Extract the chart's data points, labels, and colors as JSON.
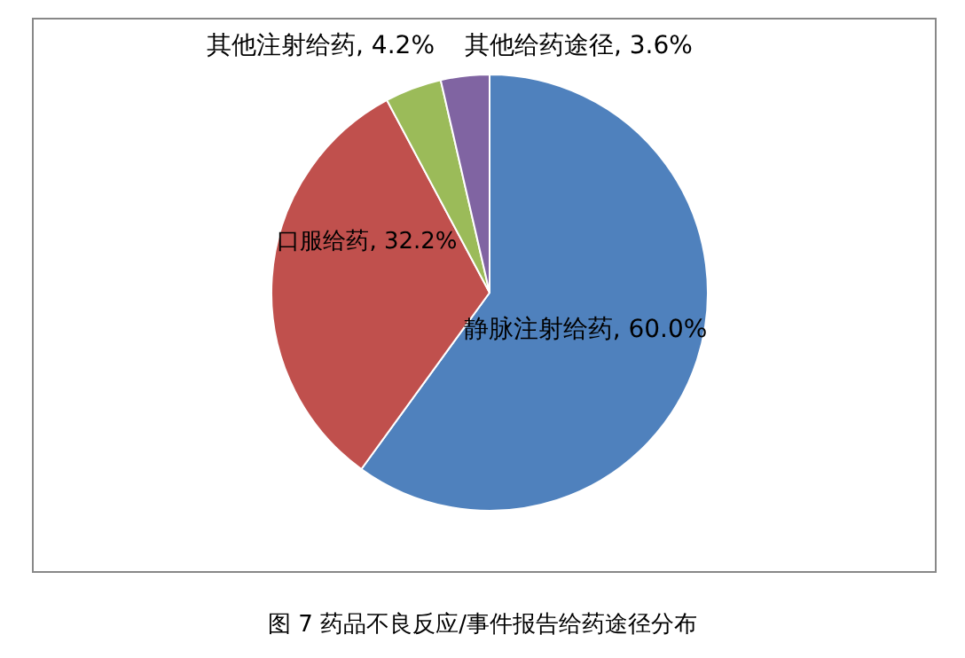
{
  "chart_data": {
    "type": "pie",
    "categories": [
      "静脉注射给药",
      "口服给药",
      "其他注射给药",
      "其他给药途径"
    ],
    "values": [
      60.0,
      32.2,
      4.2,
      3.6
    ],
    "colors": [
      "#4f81bd",
      "#c0504d",
      "#9bbb59",
      "#8064a2"
    ],
    "value_labels": [
      ", 60.0%",
      ", 32.2%",
      ", 4.2%",
      ", 3.6%"
    ],
    "annotations": [
      "图 7  药品不良反应/事件报告给药途径分布"
    ]
  }
}
